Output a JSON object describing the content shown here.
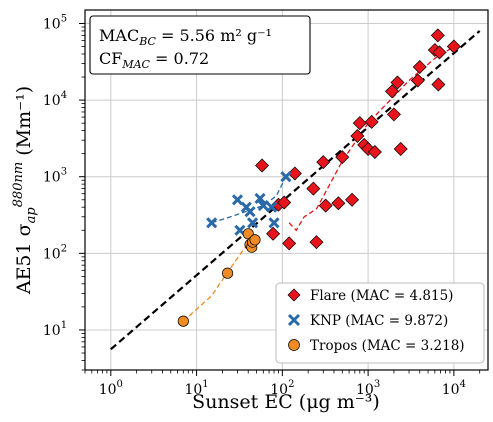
{
  "chart_data": {
    "type": "scatter",
    "title": "",
    "xlabel": "Sunset EC (μg m⁻³)",
    "ylabel": "AE51 σ",
    "ylabel_sub": "ap",
    "ylabel_sup": "880nm",
    "ylabel_unit": "(Mm⁻¹)",
    "xscale": "log",
    "yscale": "log",
    "xlim": [
      0.5,
      25000
    ],
    "ylim": [
      3,
      150000
    ],
    "grid": true,
    "legend_position": "bottom-right",
    "annotation": {
      "line1_prefix": "MAC",
      "line1_sub": "BC",
      "line1_value": " = 5.56 m² g⁻¹",
      "line2_prefix": "CF",
      "line2_sub": "MAC",
      "line2_value": " = 0.72"
    },
    "reference_line": {
      "style": "dashed",
      "color": "#000000",
      "x": [
        1,
        20000
      ],
      "y": [
        5.6,
        80000
      ]
    },
    "series": [
      {
        "name": "Flare (MAC = 4.815)",
        "marker": "diamond",
        "color": "#e8141c",
        "points": [
          [
            58,
            1400
          ],
          [
            78,
            180
          ],
          [
            90,
            430
          ],
          [
            105,
            460
          ],
          [
            120,
            135
          ],
          [
            140,
            1100
          ],
          [
            230,
            700
          ],
          [
            250,
            140
          ],
          [
            300,
            1550
          ],
          [
            320,
            420
          ],
          [
            450,
            450
          ],
          [
            500,
            1800
          ],
          [
            650,
            500
          ],
          [
            750,
            3400
          ],
          [
            800,
            5000
          ],
          [
            900,
            2600
          ],
          [
            1000,
            2300
          ],
          [
            1100,
            5200
          ],
          [
            1200,
            2100
          ],
          [
            1900,
            13000
          ],
          [
            2000,
            6500
          ],
          [
            2200,
            17000
          ],
          [
            2400,
            2300
          ],
          [
            3800,
            18000
          ],
          [
            4000,
            27000
          ],
          [
            6000,
            45000
          ],
          [
            6500,
            70000
          ],
          [
            6600,
            16000
          ],
          [
            6800,
            42000
          ],
          [
            10000,
            50000
          ]
        ],
        "fit": [
          [
            120,
            250
          ],
          [
            145,
            200
          ],
          [
            180,
            300
          ],
          [
            250,
            380
          ],
          [
            500,
            1600
          ],
          [
            1000,
            5000
          ],
          [
            3000,
            18000
          ],
          [
            6000,
            35000
          ],
          [
            10000,
            50000
          ]
        ]
      },
      {
        "name": "KNP (MAC = 9.872)",
        "marker": "x",
        "color": "#2a6aa8",
        "points": [
          [
            15,
            250
          ],
          [
            30,
            500
          ],
          [
            32,
            200
          ],
          [
            38,
            400
          ],
          [
            42,
            350
          ],
          [
            45,
            250
          ],
          [
            55,
            520
          ],
          [
            60,
            420
          ],
          [
            75,
            400
          ],
          [
            80,
            250
          ],
          [
            110,
            1000
          ]
        ],
        "fit": [
          [
            15,
            250
          ],
          [
            25,
            300
          ],
          [
            40,
            360
          ],
          [
            60,
            420
          ],
          [
            85,
            560
          ],
          [
            110,
            1000
          ]
        ]
      },
      {
        "name": "Tropos (MAC = 3.218)",
        "marker": "circle",
        "color": "#f08a24",
        "points": [
          [
            7,
            13
          ],
          [
            23,
            55
          ],
          [
            40,
            180
          ],
          [
            42,
            130
          ],
          [
            44,
            120
          ],
          [
            45,
            140
          ],
          [
            48,
            150
          ]
        ],
        "fit": [
          [
            7,
            13
          ],
          [
            15,
            28
          ],
          [
            25,
            65
          ],
          [
            35,
            110
          ],
          [
            42,
            140
          ],
          [
            48,
            160
          ]
        ]
      }
    ]
  }
}
